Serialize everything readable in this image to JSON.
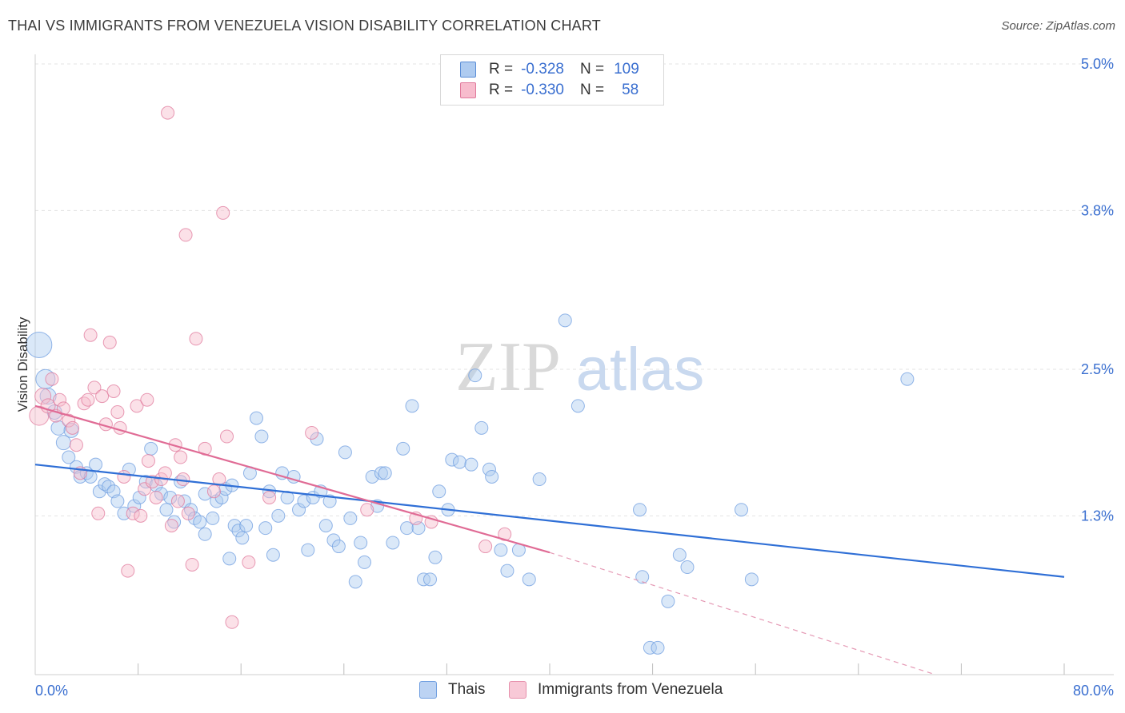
{
  "header": {
    "title": "THAI VS IMMIGRANTS FROM VENEZUELA VISION DISABILITY CORRELATION CHART",
    "source": "Source: ZipAtlas.com"
  },
  "watermark": {
    "zip": "ZIP",
    "atlas": "atlas"
  },
  "legend": {
    "r_label": "R =",
    "n_label": "N =",
    "rows": [
      {
        "r": "-0.328",
        "n": "109",
        "fill": "#aecbf0",
        "stroke": "#5b8ed6"
      },
      {
        "r": "-0.330",
        "n": "58",
        "fill": "#f7bccd",
        "stroke": "#e07a9c"
      }
    ]
  },
  "bottom_legend": [
    {
      "label": "Thais",
      "fill": "#bcd3f3",
      "stroke": "#6f9ee0"
    },
    {
      "label": "Immigrants from Venezuela",
      "fill": "#f8c9d7",
      "stroke": "#e690ac"
    }
  ],
  "chart_data": {
    "type": "scatter",
    "title": "THAI VS IMMIGRANTS FROM VENEZUELA VISION DISABILITY CORRELATION CHART",
    "xlabel": "",
    "ylabel": "Vision Disability",
    "xlim": [
      0,
      80
    ],
    "ylim": [
      0.0,
      5.0
    ],
    "x_tick_labels": {
      "0": "0.0%",
      "80": "80.0%"
    },
    "y_ticks": [
      {
        "value": 1.3,
        "label": "1.3%"
      },
      {
        "value": 2.5,
        "label": "2.5%"
      },
      {
        "value": 3.8,
        "label": "3.8%"
      },
      {
        "value": 5.0,
        "label": "5.0%"
      }
    ],
    "x_minor_ticks": [
      8,
      16,
      24,
      32,
      40,
      48,
      56,
      64,
      72,
      80
    ],
    "grid": true,
    "series": [
      {
        "name": "Thais",
        "color": "#6f9ee0",
        "fill": "#aecbf0",
        "trend": {
          "x0": 0,
          "y0": 1.72,
          "x1": 80,
          "y1": 0.8
        },
        "points": [
          [
            0.3,
            2.7,
            16
          ],
          [
            0.8,
            2.42,
            12
          ],
          [
            1.0,
            2.28,
            10
          ],
          [
            1.5,
            2.15,
            9
          ],
          [
            1.8,
            2.02,
            9
          ],
          [
            2.2,
            1.9,
            9
          ],
          [
            2.8,
            2.0,
            9
          ],
          [
            2.6,
            1.78,
            8
          ],
          [
            3.2,
            1.7,
            8
          ],
          [
            3.5,
            1.62,
            8
          ],
          [
            4.0,
            1.65,
            8
          ],
          [
            4.3,
            1.62,
            8
          ],
          [
            4.7,
            1.72,
            8
          ],
          [
            5.0,
            1.5,
            8
          ],
          [
            5.4,
            1.56,
            8
          ],
          [
            5.7,
            1.54,
            8
          ],
          [
            6.1,
            1.5,
            8
          ],
          [
            6.4,
            1.42,
            8
          ],
          [
            6.9,
            1.32,
            8
          ],
          [
            7.3,
            1.68,
            8
          ],
          [
            7.7,
            1.38,
            8
          ],
          [
            8.1,
            1.45,
            8
          ],
          [
            8.6,
            1.58,
            8
          ],
          [
            9.0,
            1.85,
            8
          ],
          [
            9.4,
            1.55,
            8
          ],
          [
            9.8,
            1.48,
            8
          ],
          [
            10.2,
            1.35,
            8
          ],
          [
            10.5,
            1.45,
            8
          ],
          [
            10.8,
            1.25,
            8
          ],
          [
            11.3,
            1.58,
            8
          ],
          [
            11.6,
            1.42,
            8
          ],
          [
            12.1,
            1.35,
            8
          ],
          [
            12.4,
            1.28,
            8
          ],
          [
            12.8,
            1.25,
            8
          ],
          [
            13.2,
            1.48,
            8
          ],
          [
            13.2,
            1.15,
            8
          ],
          [
            13.8,
            1.28,
            8
          ],
          [
            14.1,
            1.42,
            8
          ],
          [
            14.5,
            1.45,
            8
          ],
          [
            14.8,
            1.52,
            8
          ],
          [
            15.1,
            0.95,
            8
          ],
          [
            15.5,
            1.22,
            8
          ],
          [
            15.8,
            1.18,
            8
          ],
          [
            16.1,
            1.12,
            8
          ],
          [
            16.4,
            1.22,
            8
          ],
          [
            16.7,
            1.65,
            8
          ],
          [
            17.2,
            2.1,
            8
          ],
          [
            17.6,
            1.95,
            8
          ],
          [
            17.9,
            1.2,
            8
          ],
          [
            18.2,
            1.5,
            8
          ],
          [
            18.5,
            0.98,
            8
          ],
          [
            18.9,
            1.3,
            8
          ],
          [
            19.2,
            1.65,
            8
          ],
          [
            19.6,
            1.45,
            8
          ],
          [
            20.1,
            1.62,
            8
          ],
          [
            20.5,
            1.35,
            8
          ],
          [
            20.9,
            1.42,
            8
          ],
          [
            21.2,
            1.02,
            8
          ],
          [
            21.6,
            1.45,
            8
          ],
          [
            21.9,
            1.93,
            8
          ],
          [
            22.2,
            1.5,
            8
          ],
          [
            22.6,
            1.22,
            8
          ],
          [
            22.9,
            1.42,
            8
          ],
          [
            23.2,
            1.1,
            8
          ],
          [
            23.6,
            1.05,
            8
          ],
          [
            24.1,
            1.82,
            8
          ],
          [
            24.5,
            1.28,
            8
          ],
          [
            24.9,
            0.76,
            8
          ],
          [
            25.3,
            1.08,
            8
          ],
          [
            25.6,
            0.92,
            8
          ],
          [
            26.2,
            1.62,
            8
          ],
          [
            26.6,
            1.38,
            8
          ],
          [
            26.9,
            1.65,
            8
          ],
          [
            27.2,
            1.65,
            8
          ],
          [
            27.8,
            1.08,
            8
          ],
          [
            28.6,
            1.85,
            8
          ],
          [
            28.9,
            1.2,
            8
          ],
          [
            29.3,
            2.2,
            8
          ],
          [
            29.8,
            1.2,
            8
          ],
          [
            30.2,
            0.78,
            8
          ],
          [
            30.7,
            0.78,
            8
          ],
          [
            31.1,
            0.96,
            8
          ],
          [
            31.4,
            1.5,
            8
          ],
          [
            32.1,
            1.35,
            8
          ],
          [
            32.4,
            1.76,
            8
          ],
          [
            33.0,
            1.74,
            8
          ],
          [
            33.9,
            1.72,
            8
          ],
          [
            34.2,
            2.45,
            8
          ],
          [
            34.7,
            2.02,
            8
          ],
          [
            35.3,
            1.68,
            8
          ],
          [
            35.5,
            1.62,
            8
          ],
          [
            36.2,
            1.02,
            8
          ],
          [
            36.7,
            0.85,
            8
          ],
          [
            37.6,
            1.02,
            8
          ],
          [
            38.4,
            0.78,
            8
          ],
          [
            39.2,
            1.6,
            8
          ],
          [
            41.2,
            2.9,
            8
          ],
          [
            42.2,
            2.2,
            8
          ],
          [
            47.0,
            1.35,
            8
          ],
          [
            49.2,
            0.6,
            8
          ],
          [
            50.1,
            0.98,
            8
          ],
          [
            50.7,
            0.88,
            8
          ],
          [
            47.2,
            0.8,
            8
          ],
          [
            47.8,
            0.22,
            8
          ],
          [
            48.4,
            0.22,
            8
          ],
          [
            54.9,
            1.35,
            8
          ],
          [
            55.7,
            0.78,
            8
          ],
          [
            67.8,
            2.42,
            8
          ],
          [
            15.3,
            1.55,
            8
          ]
        ]
      },
      {
        "name": "Immigrants from Venezuela",
        "color": "#e07a9c",
        "fill": "#f7bccd",
        "trend": {
          "x0": 0,
          "y0": 2.2,
          "x1": 40,
          "y1": 1.0
        },
        "trend_dashed": {
          "x0": 40,
          "y0": 1.0,
          "x1": 70,
          "y1": 0.0
        },
        "points": [
          [
            0.3,
            2.12,
            12
          ],
          [
            0.6,
            2.28,
            10
          ],
          [
            1.0,
            2.2,
            9
          ],
          [
            1.3,
            2.42,
            8
          ],
          [
            1.6,
            2.12,
            8
          ],
          [
            1.9,
            2.25,
            8
          ],
          [
            2.2,
            2.18,
            8
          ],
          [
            2.6,
            2.08,
            8
          ],
          [
            2.9,
            2.02,
            8
          ],
          [
            3.2,
            1.88,
            8
          ],
          [
            3.5,
            1.65,
            8
          ],
          [
            3.8,
            2.22,
            8
          ],
          [
            4.1,
            2.25,
            8
          ],
          [
            4.3,
            2.78,
            8
          ],
          [
            4.6,
            2.35,
            8
          ],
          [
            4.9,
            1.32,
            8
          ],
          [
            5.2,
            2.28,
            8
          ],
          [
            5.5,
            2.05,
            8
          ],
          [
            5.8,
            2.72,
            8
          ],
          [
            6.1,
            2.32,
            8
          ],
          [
            6.4,
            2.15,
            8
          ],
          [
            6.6,
            2.02,
            8
          ],
          [
            6.9,
            1.62,
            8
          ],
          [
            7.2,
            0.85,
            8
          ],
          [
            7.6,
            1.32,
            8
          ],
          [
            7.9,
            2.2,
            8
          ],
          [
            8.2,
            1.3,
            8
          ],
          [
            8.5,
            1.52,
            8
          ],
          [
            8.8,
            1.75,
            8
          ],
          [
            9.1,
            1.58,
            8
          ],
          [
            9.4,
            1.45,
            8
          ],
          [
            8.7,
            2.25,
            8
          ],
          [
            9.8,
            1.6,
            8
          ],
          [
            10.1,
            1.65,
            8
          ],
          [
            10.3,
            4.6,
            8
          ],
          [
            10.6,
            1.22,
            8
          ],
          [
            10.9,
            1.88,
            8
          ],
          [
            11.1,
            1.42,
            8
          ],
          [
            11.3,
            1.78,
            8
          ],
          [
            11.5,
            1.6,
            8
          ],
          [
            11.7,
            3.6,
            8
          ],
          [
            11.9,
            1.32,
            8
          ],
          [
            12.2,
            0.9,
            8
          ],
          [
            12.5,
            2.75,
            8
          ],
          [
            13.2,
            1.85,
            8
          ],
          [
            13.9,
            1.5,
            8
          ],
          [
            14.3,
            1.6,
            8
          ],
          [
            14.6,
            3.78,
            8
          ],
          [
            14.9,
            1.95,
            8
          ],
          [
            15.3,
            0.43,
            8
          ],
          [
            16.6,
            0.92,
            8
          ],
          [
            18.2,
            1.45,
            8
          ],
          [
            21.5,
            1.98,
            8
          ],
          [
            25.8,
            1.35,
            8
          ],
          [
            29.6,
            1.28,
            8
          ],
          [
            30.8,
            1.25,
            8
          ],
          [
            35.0,
            1.05,
            8
          ],
          [
            36.5,
            1.15,
            8
          ]
        ]
      }
    ]
  }
}
